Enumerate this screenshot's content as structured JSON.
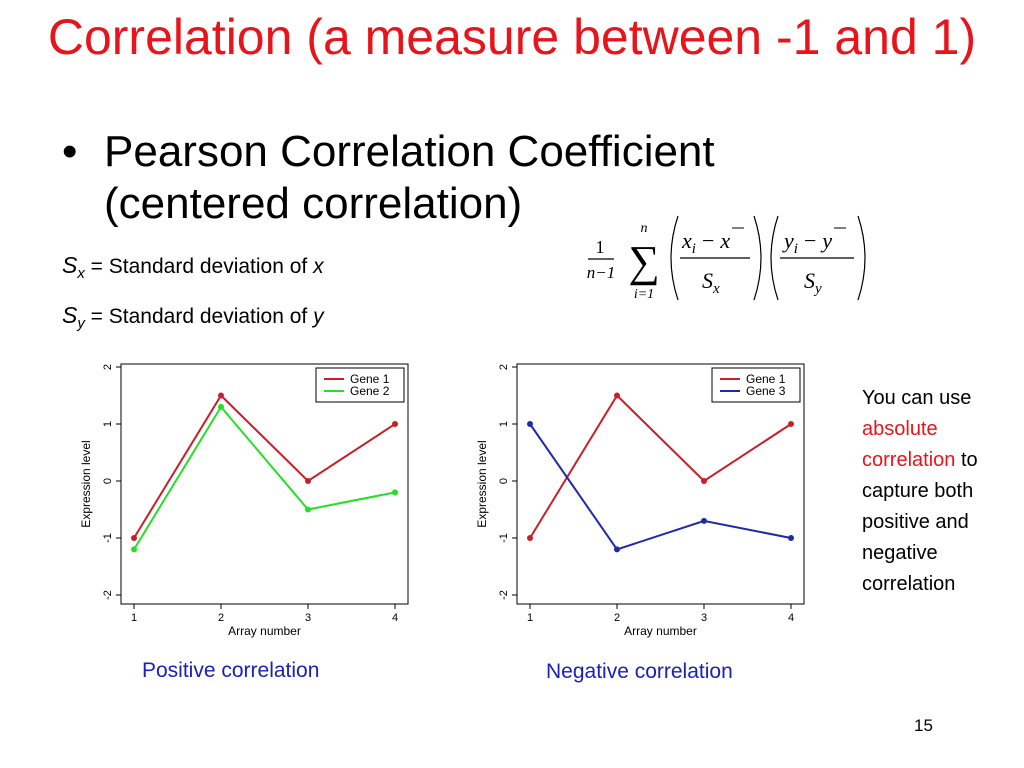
{
  "slide": {
    "title": "Correlation (a measure between -1 and 1)",
    "bullet": "Pearson Correlation Coefficient (centered correlation)",
    "defs": [
      {
        "symbol": "S",
        "sub": "x",
        "eq": " = ",
        "text": "Standard deviation of ",
        "var": "x"
      },
      {
        "symbol": "S",
        "sub": "y",
        "eq": " = ",
        "text": "Standard deviation of ",
        "var": "y"
      }
    ],
    "formula": {
      "one": "1",
      "n": "n",
      "n_minus_1": "n−1",
      "i_eq_1": "i=1",
      "sum": "∑",
      "num1": "x",
      "num1_sub": "i",
      "num1_bar": "x",
      "den1": "S",
      "den1_sub": "x",
      "num2": "y",
      "num2_sub": "i",
      "num2_bar": "y",
      "den2": "S",
      "den2_sub": "y",
      "minus": "−"
    },
    "captions": {
      "positive": "Positive correlation",
      "negative": "Negative correlation"
    },
    "side_note": {
      "line1": "You can use",
      "highlight": "absolute correlation",
      "rest_a": "to",
      "rest_b": "capture both positive and negative correlation"
    },
    "page_number": "15"
  },
  "colors": {
    "title": "#e8141b",
    "caption": "#1a21b8",
    "gene1": "#c8202a",
    "gene2": "#22e022",
    "gene3": "#1e2aa8"
  },
  "chart_data": [
    {
      "type": "line",
      "xlabel": "Array number",
      "ylabel": "Expression level",
      "x": [
        1,
        2,
        3,
        4
      ],
      "xlim": [
        1,
        4
      ],
      "ylim": [
        -2,
        2
      ],
      "yticks": [
        -2,
        -1,
        0,
        1,
        2
      ],
      "xticks": [
        1,
        2,
        3,
        4
      ],
      "legend": "top-right",
      "grid": false,
      "series": [
        {
          "name": "Gene 1",
          "color": "#c8202a",
          "values": [
            -1,
            1.5,
            0,
            1
          ]
        },
        {
          "name": "Gene 2",
          "color": "#22e022",
          "values": [
            -1.2,
            1.3,
            -0.5,
            -0.2
          ]
        }
      ]
    },
    {
      "type": "line",
      "xlabel": "Array number",
      "ylabel": "Expression level",
      "x": [
        1,
        2,
        3,
        4
      ],
      "xlim": [
        1,
        4
      ],
      "ylim": [
        -2,
        2
      ],
      "yticks": [
        -2,
        -1,
        0,
        1,
        2
      ],
      "xticks": [
        1,
        2,
        3,
        4
      ],
      "legend": "top-right",
      "grid": false,
      "series": [
        {
          "name": "Gene 1",
          "color": "#c8202a",
          "values": [
            -1,
            1.5,
            0,
            1
          ]
        },
        {
          "name": "Gene 3",
          "color": "#1e2aa8",
          "values": [
            1,
            -1.2,
            -0.7,
            -1
          ]
        }
      ]
    }
  ]
}
